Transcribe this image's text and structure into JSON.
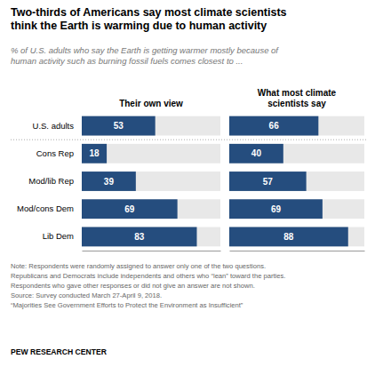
{
  "chart_data": {
    "type": "bar",
    "orientation": "horizontal",
    "title": "Two-thirds of Americans say most climate scientists\nthink the Earth is warming due to human activity",
    "subtitle": "% of U.S. adults who say the Earth is getting warmer mostly because of\nhuman activity such as burning fossil fuels comes closest to ...",
    "categories": [
      "U.S. adults",
      "Cons Rep",
      "Mod/lib Rep",
      "Mod/cons Dem",
      "Lib Dem"
    ],
    "series": [
      {
        "name": "Their own view",
        "color": "#254d7e",
        "values": [
          53,
          18,
          39,
          69,
          83
        ]
      },
      {
        "name": "What most climate\nscientists say",
        "color": "#254d7e",
        "values": [
          66,
          40,
          57,
          69,
          88
        ]
      }
    ],
    "xlim": [
      0,
      100
    ],
    "data_labels": true,
    "tick_labels": "y",
    "annotations": [
      "Note: Respondents were randomly assigned to answer only one of the two questions.",
      "Republicans and Democrats include independents and others who “lean” toward the parties.",
      "Respondents who gave other responses or did not give an answer are not shown.",
      "Source: Survey conducted March 27-April 9, 2018.",
      "“Majorities See Government Efforts to Protect the Environment as Insufficient”",
      "PEW RESEARCH CENTER"
    ]
  }
}
